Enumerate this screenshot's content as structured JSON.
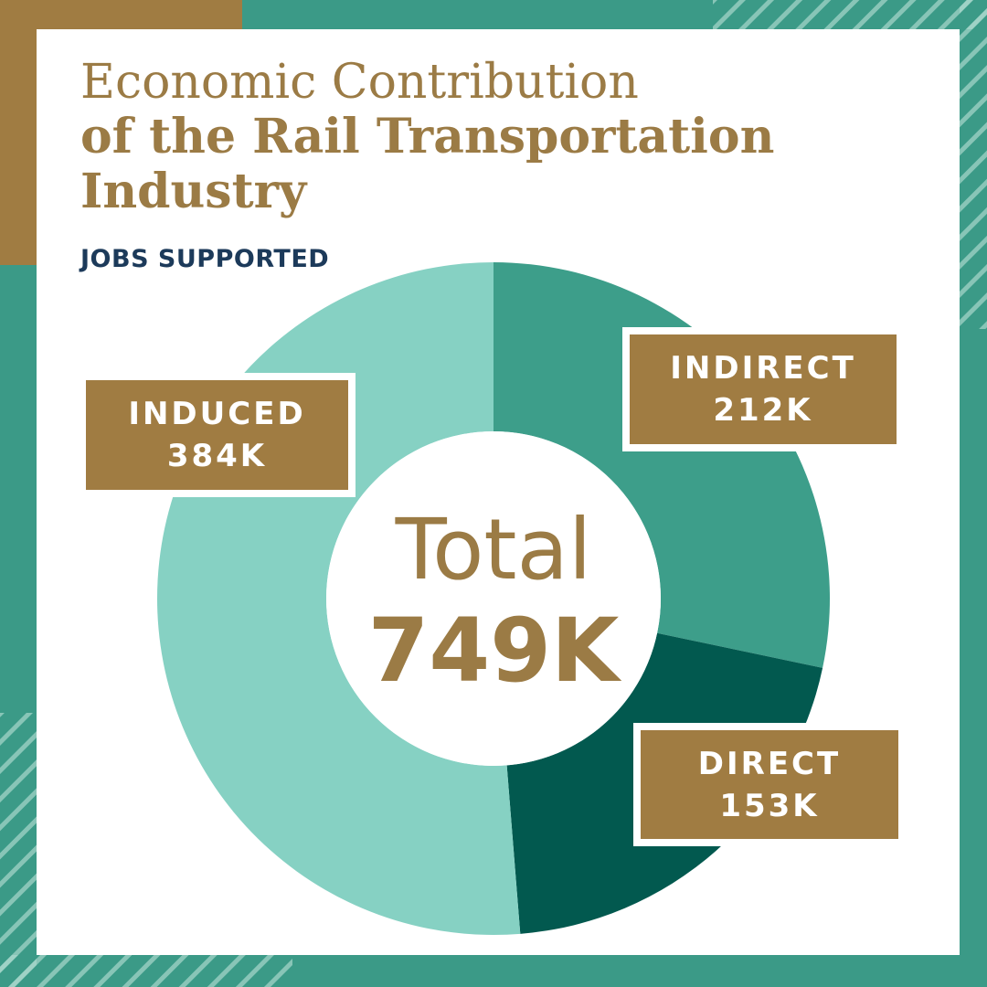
{
  "chart_data": {
    "type": "donut",
    "title": "Economic Contribution",
    "title_emphasis": "of the Rail Transportation Industry",
    "subtitle": "JOBS SUPPORTED",
    "categories": [
      "INDIRECT",
      "DIRECT",
      "INDUCED"
    ],
    "values": [
      212,
      153,
      384
    ],
    "value_labels": [
      "212K",
      "153K",
      "384K"
    ],
    "colors": [
      "#3d9e8a",
      "#02594f",
      "#86d1c3"
    ],
    "center_label": "Total",
    "center_value": "749K"
  }
}
